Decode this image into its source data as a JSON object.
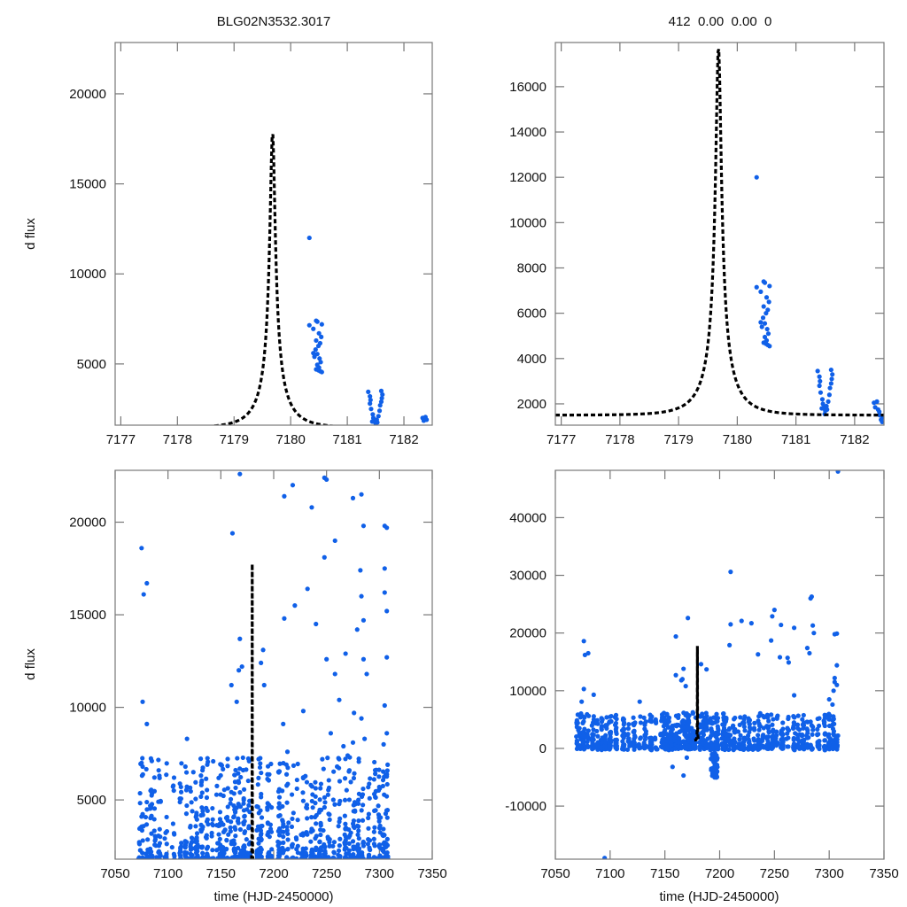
{
  "figure": {
    "left_title": "BLG02N3532.3017",
    "right_title": "412  0.00  0.00  0",
    "colors": {
      "points": "#1060e8",
      "model": "#000000",
      "frame": "#777777"
    }
  },
  "chart_data": [
    {
      "id": "top-left",
      "type": "scatter",
      "title": "BLG02N3532.3017",
      "xlabel": "",
      "ylabel": "d flux",
      "xlim": [
        7176.9,
        7182.5
      ],
      "ylim": [
        1600,
        22850
      ],
      "xticks": [
        7177,
        7178,
        7179,
        7180,
        7181,
        7182
      ],
      "xtick_labels": [
        "7177",
        "7178",
        "7179",
        "7180",
        "7181",
        "7182"
      ],
      "yticks": [
        5000,
        10000,
        15000,
        20000
      ],
      "ytick_labels": [
        "5000",
        "10000",
        "15000",
        "20000"
      ],
      "model": {
        "t0": 7179.68,
        "peak": 17900,
        "baseline": 1450,
        "tE": 0.55,
        "u0": 0.083
      },
      "points": [
        [
          7180.33,
          12000
        ],
        [
          7180.33,
          7150
        ],
        [
          7180.45,
          7400
        ],
        [
          7180.47,
          7350
        ],
        [
          7180.4,
          6950
        ],
        [
          7180.55,
          7200
        ],
        [
          7180.5,
          6700
        ],
        [
          7180.54,
          6500
        ],
        [
          7180.45,
          6300
        ],
        [
          7180.52,
          6150
        ],
        [
          7180.49,
          6000
        ],
        [
          7180.44,
          5800
        ],
        [
          7180.47,
          5550
        ],
        [
          7180.51,
          5300
        ],
        [
          7180.53,
          5100
        ],
        [
          7180.47,
          4950
        ],
        [
          7180.5,
          4800
        ],
        [
          7180.45,
          4700
        ],
        [
          7180.52,
          4600
        ],
        [
          7180.49,
          4650
        ],
        [
          7180.55,
          4550
        ],
        [
          7180.42,
          5400
        ],
        [
          7180.4,
          5600
        ],
        [
          7181.37,
          3450
        ],
        [
          7181.4,
          3200
        ],
        [
          7181.41,
          3000
        ],
        [
          7181.4,
          2800
        ],
        [
          7181.42,
          2500
        ],
        [
          7181.45,
          2200
        ],
        [
          7181.46,
          2000
        ],
        [
          7181.48,
          1850
        ],
        [
          7181.5,
          1700
        ],
        [
          7181.52,
          1900
        ],
        [
          7181.55,
          2100
        ],
        [
          7181.57,
          2400
        ],
        [
          7181.58,
          2700
        ],
        [
          7181.6,
          2900
        ],
        [
          7181.61,
          3100
        ],
        [
          7181.62,
          3300
        ],
        [
          7181.6,
          3500
        ],
        [
          7181.44,
          1800
        ],
        [
          7181.53,
          1750
        ],
        [
          7182.33,
          2000
        ],
        [
          7182.38,
          2050
        ],
        [
          7182.35,
          1850
        ],
        [
          7182.4,
          1900
        ]
      ]
    },
    {
      "id": "top-right",
      "type": "scatter",
      "title": "412  0.00  0.00  0",
      "xlabel": "",
      "ylabel": "",
      "xlim": [
        7176.9,
        7182.5
      ],
      "ylim": [
        1060,
        17950
      ],
      "xticks": [
        7177,
        7178,
        7179,
        7180,
        7181,
        7182
      ],
      "xtick_labels": [
        "7177",
        "7178",
        "7179",
        "7180",
        "7181",
        "7182"
      ],
      "yticks": [
        2000,
        4000,
        6000,
        8000,
        10000,
        12000,
        14000,
        16000
      ],
      "ytick_labels": [
        "2000",
        "4000",
        "6000",
        "8000",
        "10000",
        "12000",
        "14000",
        "16000"
      ],
      "model": {
        "t0": 7179.68,
        "peak": 17800,
        "baseline": 1500,
        "tE": 0.55,
        "u0": 0.085
      },
      "points": [
        [
          7180.33,
          12000
        ],
        [
          7180.33,
          7150
        ],
        [
          7180.45,
          7400
        ],
        [
          7180.47,
          7350
        ],
        [
          7180.4,
          6950
        ],
        [
          7180.55,
          7200
        ],
        [
          7180.5,
          6700
        ],
        [
          7180.54,
          6500
        ],
        [
          7180.45,
          6300
        ],
        [
          7180.52,
          6150
        ],
        [
          7180.49,
          6000
        ],
        [
          7180.44,
          5800
        ],
        [
          7180.47,
          5550
        ],
        [
          7180.51,
          5300
        ],
        [
          7180.53,
          5100
        ],
        [
          7180.47,
          4950
        ],
        [
          7180.5,
          4800
        ],
        [
          7180.45,
          4700
        ],
        [
          7180.52,
          4600
        ],
        [
          7180.49,
          4650
        ],
        [
          7180.55,
          4550
        ],
        [
          7180.42,
          5400
        ],
        [
          7180.4,
          5600
        ],
        [
          7181.37,
          3450
        ],
        [
          7181.4,
          3200
        ],
        [
          7181.41,
          3000
        ],
        [
          7181.4,
          2800
        ],
        [
          7181.42,
          2500
        ],
        [
          7181.45,
          2200
        ],
        [
          7181.46,
          2000
        ],
        [
          7181.48,
          1850
        ],
        [
          7181.5,
          1700
        ],
        [
          7181.52,
          1900
        ],
        [
          7181.55,
          2100
        ],
        [
          7181.57,
          2400
        ],
        [
          7181.58,
          2700
        ],
        [
          7181.6,
          2900
        ],
        [
          7181.61,
          3100
        ],
        [
          7181.62,
          3300
        ],
        [
          7181.6,
          3500
        ],
        [
          7181.44,
          1800
        ],
        [
          7181.53,
          1750
        ],
        [
          7181.49,
          1550
        ],
        [
          7182.33,
          2050
        ],
        [
          7182.38,
          2100
        ],
        [
          7182.35,
          1850
        ],
        [
          7182.4,
          1750
        ],
        [
          7182.43,
          1500
        ],
        [
          7182.45,
          1300
        ],
        [
          7182.47,
          1200
        ],
        [
          7182.42,
          1650
        ],
        [
          7182.48,
          1400
        ]
      ]
    },
    {
      "id": "bottom-left",
      "type": "scatter",
      "title": "",
      "xlabel": "time (HJD-2450000)",
      "ylabel": "d flux",
      "xlim": [
        7050,
        7350
      ],
      "ylim": [
        1800,
        22800
      ],
      "xticks": [
        7050,
        7100,
        7150,
        7200,
        7250,
        7300,
        7350
      ],
      "xtick_labels": [
        "7050",
        "7100",
        "7150",
        "7200",
        "7250",
        "7300",
        "7350"
      ],
      "yticks": [
        5000,
        10000,
        15000,
        20000
      ],
      "ytick_labels": [
        "5000",
        "10000",
        "15000",
        "20000"
      ],
      "model": {
        "t0": 7179.68,
        "peak": 17900,
        "baseline": 1450,
        "tE": 0.55,
        "u0": 0.083,
        "span": [
          7176.9,
          7182.5
        ]
      },
      "night_columns": [
        7073,
        7076,
        7080,
        7084,
        7088,
        7092,
        7098,
        7105,
        7112,
        7117,
        7122,
        7127,
        7132,
        7137,
        7142,
        7147,
        7150,
        7153,
        7156,
        7160,
        7163,
        7166,
        7169,
        7172,
        7175,
        7177,
        7185,
        7188,
        7195,
        7198,
        7205,
        7209,
        7213,
        7218,
        7222,
        7227,
        7231,
        7236,
        7240,
        7244,
        7248,
        7252,
        7257,
        7262,
        7268,
        7272,
        7276,
        7280,
        7284,
        7290,
        7296,
        7300,
        7304,
        7307
      ],
      "outliers": [
        [
          7075,
          18600
        ],
        [
          7077,
          16100
        ],
        [
          7080,
          16700
        ],
        [
          7076,
          10300
        ],
        [
          7080,
          9100
        ],
        [
          7075,
          7000
        ],
        [
          7076,
          6800
        ],
        [
          7075,
          4100
        ],
        [
          7093,
          4900
        ],
        [
          7118,
          8300
        ],
        [
          7124,
          6500
        ],
        [
          7168,
          22600
        ],
        [
          7161,
          19400
        ],
        [
          7168,
          13700
        ],
        [
          7170,
          12200
        ],
        [
          7167,
          12000
        ],
        [
          7165,
          10300
        ],
        [
          7160,
          11200
        ],
        [
          7190,
          13100
        ],
        [
          7191,
          11200
        ],
        [
          7188,
          12400
        ],
        [
          7210,
          21400
        ],
        [
          7218,
          22000
        ],
        [
          7236,
          20800
        ],
        [
          7248,
          22400
        ],
        [
          7250,
          22300
        ],
        [
          7258,
          19000
        ],
        [
          7220,
          15500
        ],
        [
          7210,
          14800
        ],
        [
          7232,
          16400
        ],
        [
          7240,
          14500
        ],
        [
          7248,
          18100
        ],
        [
          7250,
          12600
        ],
        [
          7258,
          11800
        ],
        [
          7262,
          10400
        ],
        [
          7268,
          12900
        ],
        [
          7275,
          21300
        ],
        [
          7283,
          21500
        ],
        [
          7285,
          19800
        ],
        [
          7282,
          17400
        ],
        [
          7283,
          16000
        ],
        [
          7279,
          14200
        ],
        [
          7285,
          14700
        ],
        [
          7285,
          12600
        ],
        [
          7288,
          11800
        ],
        [
          7305,
          19800
        ],
        [
          7307,
          19700
        ],
        [
          7305,
          17500
        ],
        [
          7305,
          16200
        ],
        [
          7307,
          15200
        ],
        [
          7307,
          12700
        ],
        [
          7305,
          10100
        ],
        [
          7307,
          8600
        ],
        [
          7304,
          8000
        ],
        [
          7283,
          9400
        ],
        [
          7276,
          9700
        ],
        [
          7286,
          8300
        ],
        [
          7228,
          9800
        ],
        [
          7209,
          9100
        ],
        [
          7213,
          7600
        ],
        [
          7246,
          7200
        ],
        [
          7254,
          8600
        ],
        [
          7260,
          6800
        ],
        [
          7266,
          7900
        ],
        [
          7270,
          7400
        ],
        [
          7275,
          8100
        ]
      ],
      "seed": 7
    },
    {
      "id": "bottom-right",
      "type": "scatter",
      "title": "",
      "xlabel": "time (HJD-2450000)",
      "ylabel": "",
      "xlim": [
        7050,
        7350
      ],
      "ylim": [
        -19200,
        48200
      ],
      "xticks": [
        7050,
        7100,
        7150,
        7200,
        7250,
        7300,
        7350
      ],
      "xtick_labels": [
        "7050",
        "7100",
        "7150",
        "7200",
        "7250",
        "7300",
        "7350"
      ],
      "yticks": [
        -10000,
        0,
        10000,
        20000,
        30000,
        40000
      ],
      "ytick_labels": [
        "-10000",
        "0",
        "10000",
        "20000",
        "30000",
        "40000"
      ],
      "model": {
        "t0": 7179.68,
        "peak": 17900,
        "baseline": 1450,
        "tE": 0.55,
        "u0": 0.083,
        "span": [
          7176.9,
          7182.5
        ]
      },
      "night_columns": [
        7070,
        7073,
        7076,
        7080,
        7084,
        7088,
        7092,
        7096,
        7100,
        7105,
        7112,
        7117,
        7122,
        7127,
        7132,
        7137,
        7142,
        7147,
        7150,
        7153,
        7156,
        7160,
        7163,
        7166,
        7169,
        7172,
        7175,
        7177,
        7182,
        7185,
        7188,
        7192,
        7195,
        7198,
        7203,
        7205,
        7209,
        7213,
        7218,
        7222,
        7227,
        7231,
        7236,
        7240,
        7244,
        7248,
        7252,
        7257,
        7262,
        7268,
        7272,
        7276,
        7280,
        7284,
        7290,
        7296,
        7300,
        7304,
        7307
      ],
      "dip": {
        "x": [
          7192,
          7198
        ],
        "min": -4800
      },
      "outliers": [
        [
          7308,
          48000
        ],
        [
          7210,
          30600
        ],
        [
          7283,
          26000
        ],
        [
          7284,
          26300
        ],
        [
          7250,
          24000
        ],
        [
          7248,
          22900
        ],
        [
          7220,
          22100
        ],
        [
          7171,
          22600
        ],
        [
          7210,
          21500
        ],
        [
          7229,
          21700
        ],
        [
          7256,
          21400
        ],
        [
          7268,
          20900
        ],
        [
          7285,
          21300
        ],
        [
          7286,
          20000
        ],
        [
          7305,
          19800
        ],
        [
          7307,
          19900
        ],
        [
          7160,
          19400
        ],
        [
          7076,
          18600
        ],
        [
          7080,
          16500
        ],
        [
          7077,
          16200
        ],
        [
          7209,
          17900
        ],
        [
          7247,
          18700
        ],
        [
          7255,
          15800
        ],
        [
          7280,
          17400
        ],
        [
          7282,
          16500
        ],
        [
          7235,
          16300
        ],
        [
          7262,
          15700
        ],
        [
          7263,
          14900
        ],
        [
          7183,
          14600
        ],
        [
          7188,
          13700
        ],
        [
          7307,
          14400
        ],
        [
          7305,
          12200
        ],
        [
          7305,
          11500
        ],
        [
          7307,
          11000
        ],
        [
          7304,
          10000
        ],
        [
          7076,
          10300
        ],
        [
          7085,
          9300
        ],
        [
          7074,
          8100
        ],
        [
          7127,
          8100
        ],
        [
          7160,
          12700
        ],
        [
          7166,
          12000
        ],
        [
          7167,
          13800
        ],
        [
          7165,
          11800
        ],
        [
          7169,
          10800
        ],
        [
          7268,
          9200
        ],
        [
          7300,
          8500
        ],
        [
          7303,
          7600
        ],
        [
          7093,
          5000
        ],
        [
          7170,
          -1600
        ],
        [
          7157,
          -3200
        ],
        [
          7167,
          -4700
        ],
        [
          7095,
          -19000
        ]
      ],
      "seed": 11
    }
  ]
}
